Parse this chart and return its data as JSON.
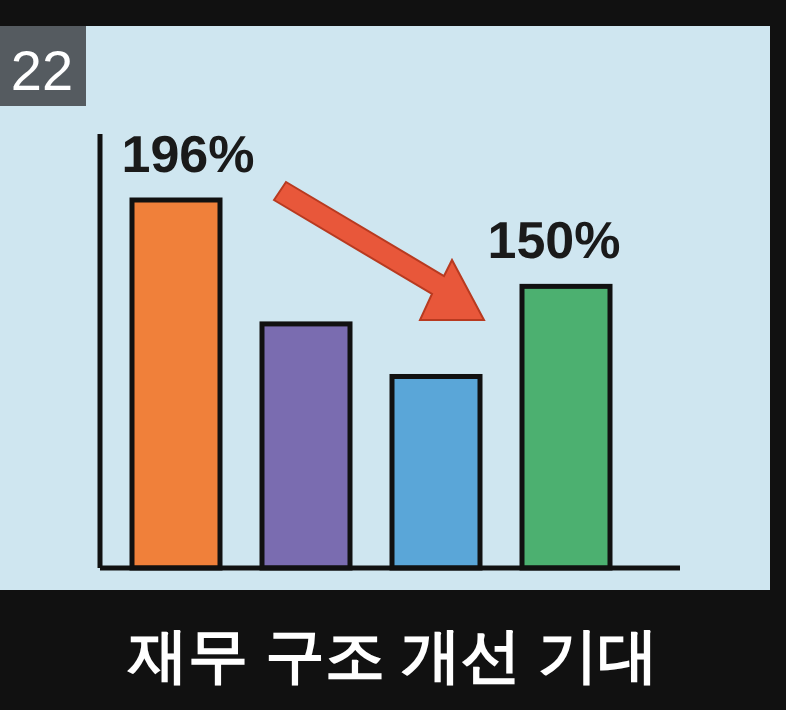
{
  "chart_data": {
    "type": "bar",
    "title": "재무 구조 개선 기대",
    "categories": [
      null,
      null,
      null,
      null
    ],
    "values": [
      196,
      130,
      102,
      150
    ],
    "colors": [
      "#f0803a",
      "#7a6cb0",
      "#5aa6d8",
      "#4cb070"
    ],
    "value_labels": [
      "196%",
      null,
      null,
      "150%"
    ],
    "annotations": [
      "22"
    ]
  }
}
